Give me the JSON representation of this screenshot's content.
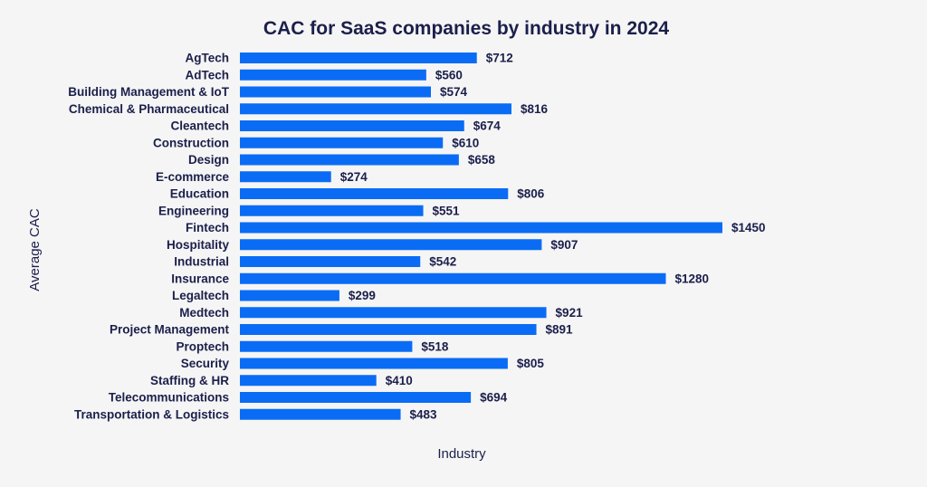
{
  "chart_data": {
    "type": "bar",
    "orientation": "horizontal",
    "title": "CAC for SaaS companies by industry in 2024",
    "xlabel": "Industry",
    "ylabel": "Average CAC",
    "value_prefix": "$",
    "xlim": [
      0,
      1450
    ],
    "grid": false,
    "legend": "none",
    "colors": {
      "bar": "#0a6cf5",
      "text": "#1b1f4b",
      "background": "#f5f5f5"
    },
    "categories": [
      "AgTech",
      "AdTech",
      "Building Management & IoT",
      "Chemical & Pharmaceutical",
      "Cleantech",
      "Construction",
      "Design",
      "E-commerce",
      "Education",
      "Engineering",
      "Fintech",
      "Hospitality",
      "Industrial",
      "Insurance",
      "Legaltech",
      "Medtech",
      "Project Management",
      "Proptech",
      "Security",
      "Staffing & HR",
      "Telecommunications",
      "Transportation & Logistics"
    ],
    "values": [
      712,
      560,
      574,
      816,
      674,
      610,
      658,
      274,
      806,
      551,
      1450,
      907,
      542,
      1280,
      299,
      921,
      891,
      518,
      805,
      410,
      694,
      483
    ],
    "value_labels": [
      "$712",
      "$560",
      "$574",
      "$816",
      "$674",
      "$610",
      "$658",
      "$274",
      "$806",
      "$551",
      "$1450",
      "$907",
      "$542",
      "$1280",
      "$299",
      "$921",
      "$891",
      "$518",
      "$805",
      "$410",
      "$694",
      "$483"
    ]
  }
}
